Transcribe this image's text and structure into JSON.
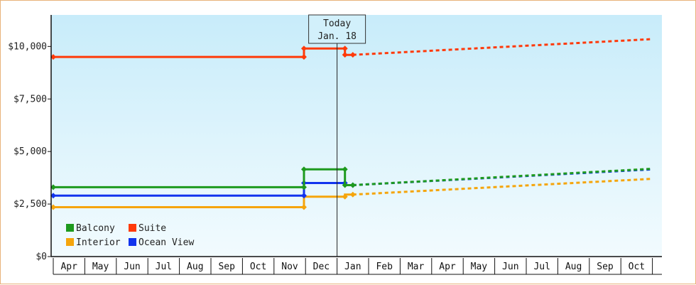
{
  "chart_data": {
    "type": "line",
    "title": "",
    "xlabel": "",
    "ylabel": "",
    "ylim": [
      0,
      11500
    ],
    "y_ticks": [
      {
        "value": 0,
        "label": "$0"
      },
      {
        "value": 2500,
        "label": "$2,500"
      },
      {
        "value": 5000,
        "label": "$5,000"
      },
      {
        "value": 7500,
        "label": "$7,500"
      },
      {
        "value": 10000,
        "label": "$10,000"
      }
    ],
    "months": [
      "Apr",
      "May",
      "Jun",
      "Jul",
      "Aug",
      "Sep",
      "Oct",
      "Nov",
      "Dec",
      "Jan",
      "Feb",
      "Mar",
      "Apr",
      "May",
      "Jun",
      "Jul",
      "Aug",
      "Sep",
      "Oct"
    ],
    "today": {
      "month_index": 9.0,
      "line1": "Today",
      "line2": "Jan. 18"
    },
    "grid": false,
    "legend_position": "bottom-left",
    "series": [
      {
        "name": "Balcony",
        "color": "#1e9a1e",
        "history": [
          [
            0,
            3300
          ],
          [
            7.95,
            3300
          ],
          [
            7.95,
            4150
          ],
          [
            9.25,
            4150
          ],
          [
            9.25,
            3400
          ],
          [
            9.5,
            3400
          ]
        ],
        "markers": [
          [
            0,
            3300
          ],
          [
            7.95,
            3300
          ],
          [
            7.95,
            4150
          ],
          [
            9.25,
            4150
          ],
          [
            9.25,
            3400
          ],
          [
            9.5,
            3400
          ]
        ],
        "forecast": [
          [
            9.5,
            3400
          ],
          [
            19,
            4180
          ]
        ]
      },
      {
        "name": "Suite",
        "color": "#ff3a0a",
        "history": [
          [
            0,
            9500
          ],
          [
            7.95,
            9500
          ],
          [
            7.95,
            9900
          ],
          [
            9.25,
            9900
          ],
          [
            9.25,
            9600
          ],
          [
            9.5,
            9600
          ]
        ],
        "markers": [
          [
            0,
            9500
          ],
          [
            7.95,
            9500
          ],
          [
            7.95,
            9900
          ],
          [
            9.25,
            9900
          ],
          [
            9.25,
            9600
          ],
          [
            9.5,
            9600
          ]
        ],
        "forecast": [
          [
            9.5,
            9600
          ],
          [
            19,
            10350
          ]
        ]
      },
      {
        "name": "Interior",
        "color": "#f5a50c",
        "history": [
          [
            0,
            2350
          ],
          [
            7.95,
            2350
          ],
          [
            7.95,
            2850
          ],
          [
            9.25,
            2850
          ],
          [
            9.25,
            2950
          ],
          [
            9.5,
            2950
          ]
        ],
        "markers": [
          [
            0,
            2350
          ],
          [
            7.95,
            2350
          ],
          [
            9.25,
            2850
          ],
          [
            9.5,
            2950
          ]
        ],
        "forecast": [
          [
            9.5,
            2950
          ],
          [
            19,
            3700
          ]
        ]
      },
      {
        "name": "Ocean View",
        "color": "#1133ee",
        "history": [
          [
            0,
            2900
          ],
          [
            7.95,
            2900
          ],
          [
            7.95,
            3500
          ],
          [
            9.25,
            3500
          ],
          [
            9.25,
            3400
          ],
          [
            9.5,
            3400
          ]
        ],
        "markers": [
          [
            0,
            2900
          ],
          [
            7.95,
            2900
          ],
          [
            7.95,
            3500
          ],
          [
            9.25,
            3500
          ],
          [
            9.5,
            3400
          ]
        ],
        "forecast": [
          [
            9.5,
            3400
          ],
          [
            19,
            4150
          ]
        ]
      }
    ]
  }
}
